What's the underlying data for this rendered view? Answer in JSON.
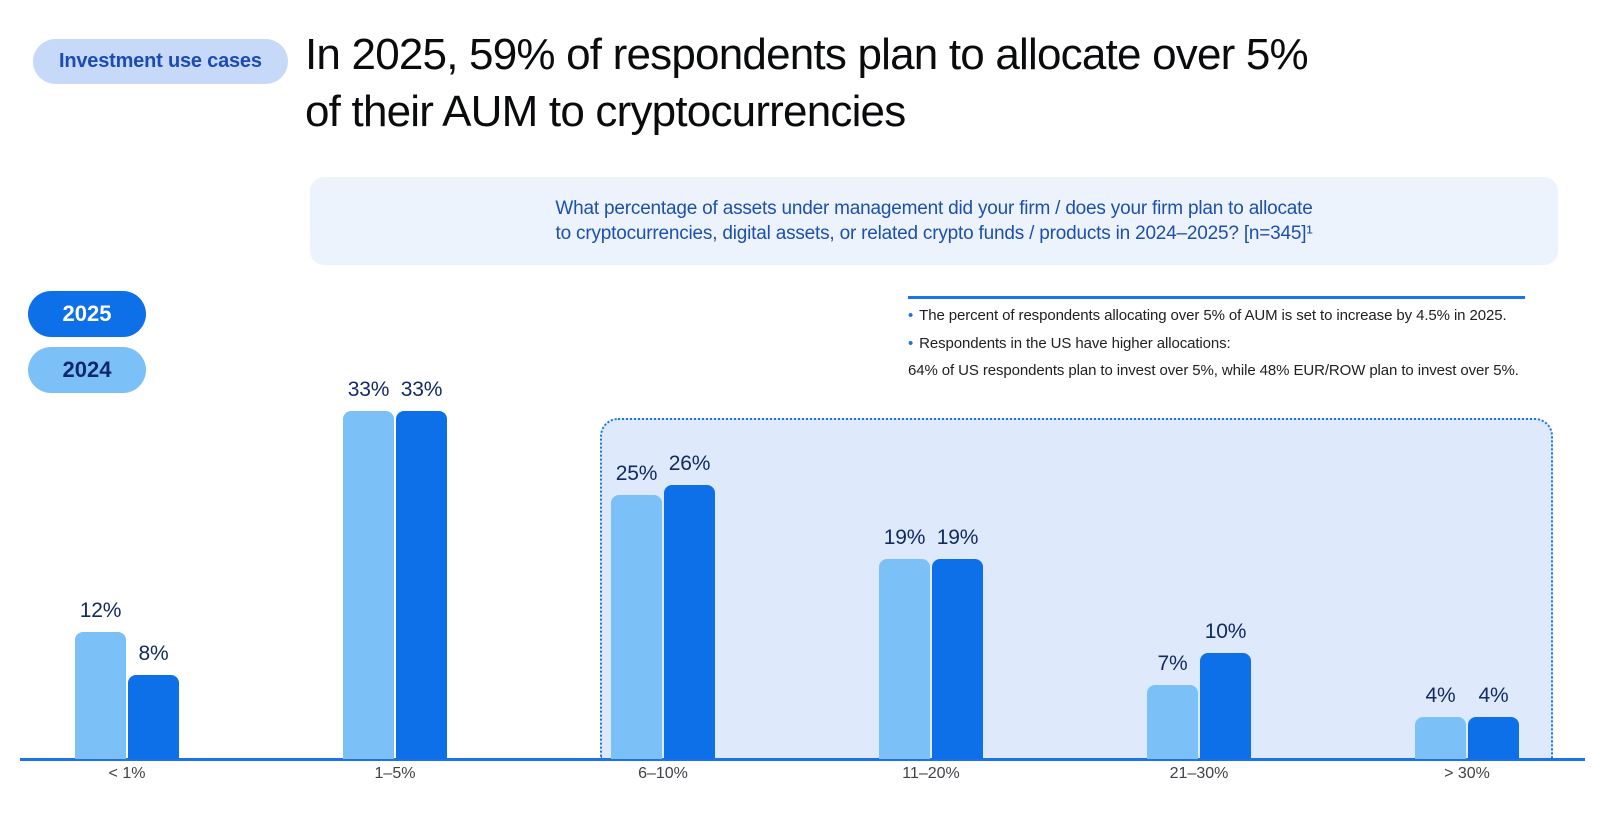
{
  "badge": {
    "label": "Investment use cases"
  },
  "title_lines": [
    "In 2025, 59% of respondents plan to allocate over 5%",
    "of their AUM to cryptocurrencies"
  ],
  "question": {
    "lines": [
      "What percentage of assets under management did your firm / does your firm plan to allocate",
      "to cryptocurrencies, digital assets, or related crypto funds / products in 2024–2025? [n=345]¹"
    ]
  },
  "legend": [
    {
      "label": "2025",
      "color": "#0E70E8",
      "text_color": "#FFFFFF"
    },
    {
      "label": "2024",
      "color": "#7CC0F8",
      "text_color": "#10286B"
    }
  ],
  "annotation": {
    "lines": [
      {
        "bullet": true,
        "text": "The percent of respondents allocating over 5% of AUM is set to increase by 4.5% in 2025."
      },
      {
        "bullet": true,
        "text": "Respondents in the US have higher allocations:"
      },
      {
        "bullet": false,
        "text": "64% of US respondents plan to invest over 5%, while 48% EUR/ROW plan to invest over 5%."
      }
    ]
  },
  "chart_data": {
    "type": "bar",
    "categories": [
      "< 1%",
      "1–5%",
      "6–10%",
      "11–20%",
      "21–30%",
      "> 30%"
    ],
    "series": [
      {
        "name": "2024",
        "color": "#7CC0F8",
        "values": [
          12,
          33,
          25,
          19,
          7,
          4
        ]
      },
      {
        "name": "2025",
        "color": "#0E70E8",
        "values": [
          8,
          33,
          26,
          19,
          10,
          4
        ]
      }
    ],
    "value_label_suffix": "%",
    "ylim": [
      0,
      35
    ],
    "grid": false,
    "y_axis_shown": false,
    "legend_position": "left",
    "highlight_region": {
      "covers_categories": [
        "6–10%",
        "11–20%",
        "21–30%",
        "> 30%"
      ]
    }
  },
  "colors": {
    "accent_blue": "#1A73E8",
    "bar_dark_blue": "#0E70E8",
    "bar_light_blue": "#7CC0F8",
    "badge_bg": "#C7D9F9",
    "badge_text": "#1C4BB4",
    "question_bg": "#EDF3FC",
    "question_text": "#1D4FAE",
    "highlight_bg": "#DFE9FC",
    "value_label": "#132A63",
    "category_label": "#3F4246",
    "title_text": "#0A0B0D",
    "annotation_text": "#202124"
  }
}
